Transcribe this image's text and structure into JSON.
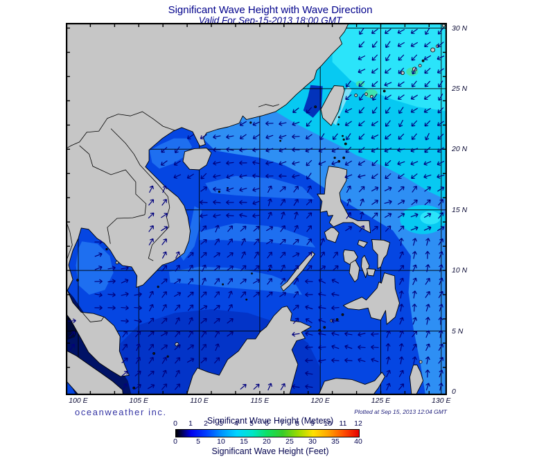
{
  "title": "Significant Wave Height with Wave Direction",
  "subtitle": "Valid For Sep-15-2013 18:00 GMT",
  "branding": "oceanweather inc.",
  "plotted": "Plotted at Sep 15, 2013 12:04 GMT",
  "axes": {
    "x_ticks": [
      {
        "label": "100 E",
        "lon": 100
      },
      {
        "label": "105 E",
        "lon": 105
      },
      {
        "label": "110 E",
        "lon": 110
      },
      {
        "label": "115 E",
        "lon": 115
      },
      {
        "label": "120 E",
        "lon": 120
      },
      {
        "label": "125 E",
        "lon": 125
      },
      {
        "label": "130 E",
        "lon": 130
      }
    ],
    "y_ticks": [
      {
        "label": "30 N",
        "lat": 30
      },
      {
        "label": "25 N",
        "lat": 25
      },
      {
        "label": "20 N",
        "lat": 20
      },
      {
        "label": "15 N",
        "lat": 15
      },
      {
        "label": "10 N",
        "lat": 10
      },
      {
        "label": "5 N",
        "lat": 5
      },
      {
        "label": "0",
        "lat": 0
      }
    ]
  },
  "legend": {
    "meters_label": "Significant Wave Height (Meters)",
    "feet_label": "Significant Wave Height (Feet)",
    "meters_ticks": [
      "0",
      "1",
      "2",
      "3",
      "4",
      "5",
      "6",
      "7",
      "8",
      "9",
      "10",
      "11",
      "12"
    ],
    "feet_ticks": [
      "0",
      "5",
      "10",
      "15",
      "20",
      "25",
      "30",
      "35",
      "40"
    ],
    "colorbar_stops": [
      [
        0,
        "#000000"
      ],
      [
        0.03,
        "#00004d"
      ],
      [
        0.083,
        "#0000ee"
      ],
      [
        0.167,
        "#0040ff"
      ],
      [
        0.25,
        "#0095ff"
      ],
      [
        0.333,
        "#00d5ff"
      ],
      [
        0.417,
        "#00e5c8"
      ],
      [
        0.5,
        "#0fe062"
      ],
      [
        0.583,
        "#38cc28"
      ],
      [
        0.667,
        "#9adb00"
      ],
      [
        0.75,
        "#ffe000"
      ],
      [
        0.833,
        "#ffa300"
      ],
      [
        0.917,
        "#ff4e00"
      ],
      [
        1,
        "#e60000"
      ]
    ]
  },
  "map": {
    "extent": {
      "lon_min": 98.97,
      "lon_max": 130.46,
      "lat_min": -0.29,
      "lat_max": 30.43
    },
    "grid_lons": [
      100,
      105,
      110,
      115,
      120,
      125,
      130
    ],
    "grid_lats": [
      5,
      10,
      15,
      20,
      25,
      30
    ],
    "palette": {
      "land": "#c6c6c6",
      "coast": "#000000",
      "ocean_base": "#0546e2",
      "ocean_south": "#0334c8",
      "strait_tw": "#0233bb",
      "band_light": "#2e8ff4",
      "band_lighter": "#1e6ff0",
      "cyan_mid": "#07c9f2",
      "cyan_bright": "#2be4fa",
      "cyan_pale": "#7fe0f6",
      "teal_spot": "#3fe3b0",
      "strait_dark": "#001266",
      "strait_darkest": "#000a38",
      "arrow": "#00007d",
      "grid": "#000000",
      "border": "#000000"
    },
    "arrow_field": [
      [
        98.9,
        5.5,
        105.4,
        13.6,
        85
      ],
      [
        98.9,
        0,
        104.5,
        5.5,
        40
      ],
      [
        105.2,
        16.8,
        111.2,
        22.5,
        228
      ],
      [
        118.5,
        5.8,
        122.5,
        10.0,
        285
      ],
      [
        117.0,
        0,
        125.2,
        5.8,
        275
      ],
      [
        125.2,
        0,
        130.7,
        13.2,
        20
      ],
      [
        124.2,
        13.2,
        130.7,
        16.8,
        55
      ],
      [
        104.5,
        0,
        121.5,
        13.6,
        42
      ],
      [
        108.0,
        13.6,
        115.5,
        16.4,
        265
      ],
      [
        115.5,
        13.6,
        124.2,
        16.8,
        30
      ],
      [
        111.2,
        16.4,
        118.0,
        20.6,
        262
      ],
      [
        118.0,
        16.8,
        121.5,
        20.6,
        235
      ],
      [
        121.5,
        16.8,
        130.7,
        20.6,
        240
      ],
      [
        111.2,
        20.6,
        118.0,
        23.3,
        250
      ],
      [
        118.0,
        20.6,
        130.7,
        23.3,
        225
      ],
      [
        98.9,
        23.3,
        130.7,
        30.7,
        228
      ]
    ]
  }
}
